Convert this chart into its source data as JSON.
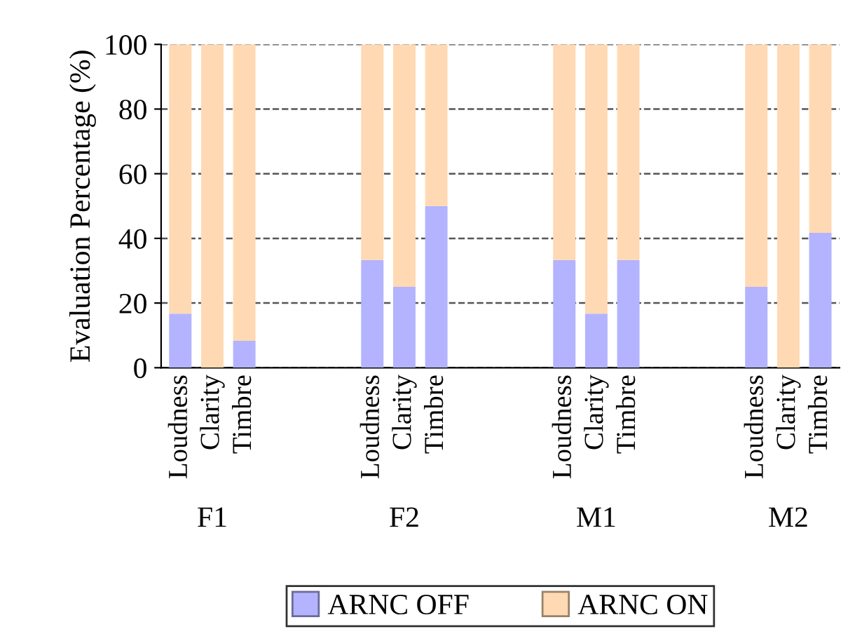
{
  "chart_data": {
    "type": "bar",
    "stacked": true,
    "ylabel": "Evaluation Percentage (%)",
    "categories": [
      "Loudness",
      "Clarity",
      "Timbre",
      null,
      null,
      null,
      "Loudness",
      "Clarity",
      "Timbre",
      null,
      null,
      null,
      "Loudness",
      "Clarity",
      "Timbre",
      null,
      null,
      null,
      "Loudness",
      "Clarity",
      "Timbre"
    ],
    "series": [
      {
        "name": "ARNC OFF",
        "color": "#b3b3ff",
        "values": [
          16.7,
          0,
          8.3,
          null,
          null,
          null,
          33.3,
          25,
          50,
          null,
          null,
          null,
          33.3,
          16.7,
          33.3,
          null,
          null,
          null,
          25,
          0,
          41.7
        ]
      },
      {
        "name": "ARNC ON",
        "color": "#ffd9b3",
        "values": [
          83.3,
          100,
          91.7,
          null,
          null,
          null,
          66.7,
          75,
          50,
          null,
          null,
          null,
          66.7,
          83.3,
          66.7,
          null,
          null,
          null,
          75,
          100,
          58.3
        ]
      }
    ],
    "annotations": [
      "F1",
      "F2",
      "M1",
      "M2"
    ],
    "ylim": [
      0,
      100
    ],
    "yticks": [
      0,
      20,
      40,
      60,
      80,
      100
    ],
    "grid": "y",
    "legend": "bottom"
  }
}
